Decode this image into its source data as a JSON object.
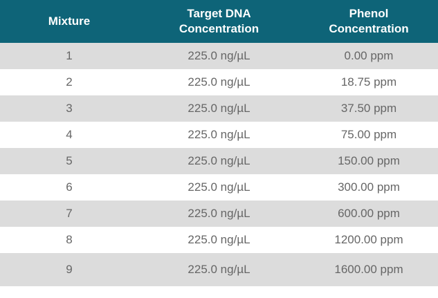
{
  "table": {
    "headers": [
      {
        "line1": "Mixture",
        "line2": ""
      },
      {
        "line1": "Target DNA",
        "line2": "Concentration"
      },
      {
        "line1": "Phenol",
        "line2": "Concentration"
      }
    ],
    "rows": [
      {
        "mixture": "1",
        "dna": "225.0 ng/µL",
        "phenol": "0.00 ppm"
      },
      {
        "mixture": "2",
        "dna": "225.0 ng/µL",
        "phenol": "18.75 ppm"
      },
      {
        "mixture": "3",
        "dna": "225.0 ng/µL",
        "phenol": "37.50 ppm"
      },
      {
        "mixture": "4",
        "dna": "225.0 ng/µL",
        "phenol": "75.00 ppm"
      },
      {
        "mixture": "5",
        "dna": "225.0 ng/µL",
        "phenol": "150.00 ppm"
      },
      {
        "mixture": "6",
        "dna": "225.0 ng/µL",
        "phenol": "300.00 ppm"
      },
      {
        "mixture": "7",
        "dna": "225.0 ng/µL",
        "phenol": "600.00 ppm"
      },
      {
        "mixture": "8",
        "dna": "225.0 ng/µL",
        "phenol": "1200.00 ppm"
      },
      {
        "mixture": "9",
        "dna": "225.0 ng/µL",
        "phenol": "1600.00 ppm"
      }
    ]
  },
  "colors": {
    "header_bg": "#0e6478",
    "header_text": "#ffffff",
    "shaded_row": "#dcdcdc",
    "body_text": "#666666"
  }
}
